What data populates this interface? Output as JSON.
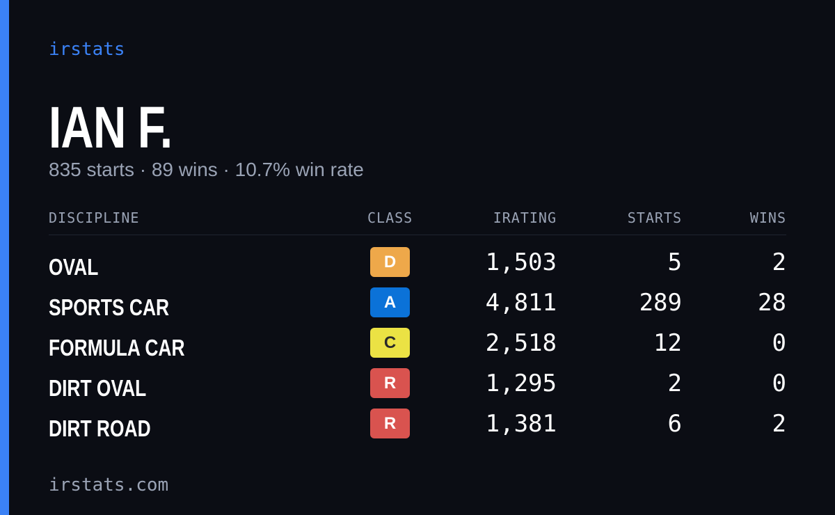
{
  "brand": "irstats",
  "name": "IAN F.",
  "summary": "835 starts · 89 wins · 10.7% win rate",
  "table": {
    "headers": [
      "DISCIPLINE",
      "CLASS",
      "IRATING",
      "STARTS",
      "WINS"
    ],
    "rows": [
      {
        "discipline": "OVAL",
        "class": "D",
        "class_color": "#eea84a",
        "irating": "1,503",
        "starts": 5,
        "wins": 2
      },
      {
        "discipline": "SPORTS CAR",
        "class": "A",
        "class_color": "#0b72d8",
        "irating": "4,811",
        "starts": 289,
        "wins": 28
      },
      {
        "discipline": "FORMULA CAR",
        "class": "C",
        "class_color": "#ebe244",
        "irating": "2,518",
        "starts": 12,
        "wins": 0
      },
      {
        "discipline": "DIRT OVAL",
        "class": "R",
        "class_color": "#d9534f",
        "irating": "1,295",
        "starts": 2,
        "wins": 0
      },
      {
        "discipline": "DIRT ROAD",
        "class": "R",
        "class_color": "#d9534f",
        "irating": "1,381",
        "starts": 6,
        "wins": 2
      }
    ]
  },
  "footer": "irstats.com"
}
